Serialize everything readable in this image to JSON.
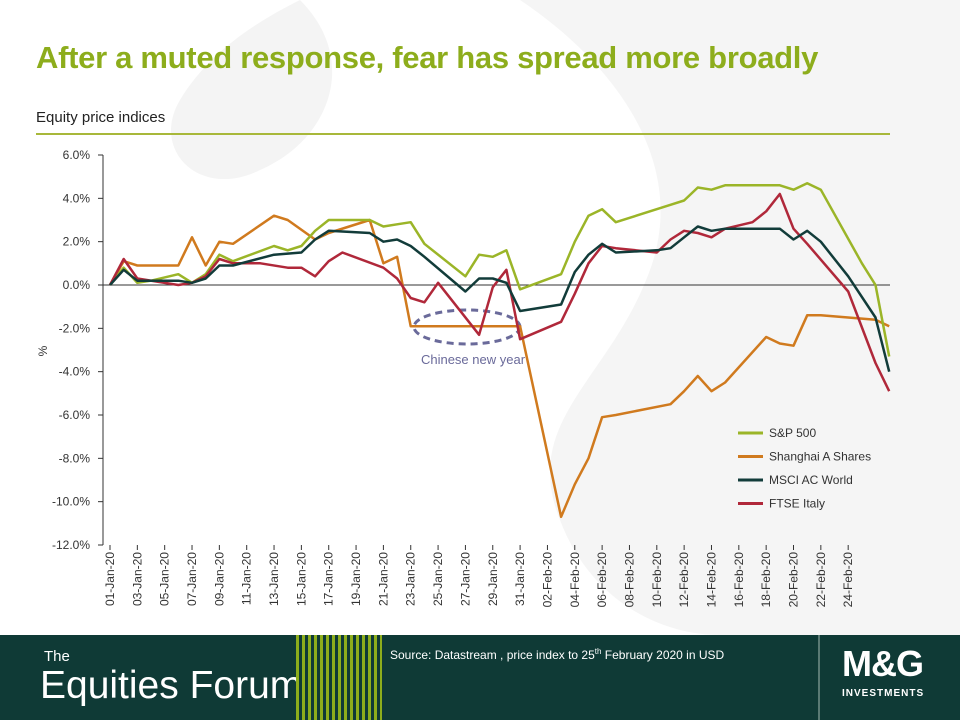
{
  "header": {
    "title": "After a muted response, fear has spread more broadly",
    "subtitle": "Equity price indices"
  },
  "footer": {
    "brand_small": "The",
    "brand_big": "Equities Forum",
    "source_prefix": "Source: Datastream , price index to 25",
    "source_sup": "th",
    "source_suffix": " February 2020 in USD",
    "logo_text": "M&G",
    "logo_sub": "INVESTMENTS"
  },
  "colors": {
    "title": "#8dad1c",
    "footer_bg": "#0f3a36",
    "sp500": "#9bb528",
    "shanghai": "#d07a1e",
    "msci": "#123c3a",
    "ftse": "#b0283a",
    "annotation": "#6a6a9a"
  },
  "chart_data": {
    "type": "line",
    "ylabel": "%",
    "ylim": [
      -12,
      6
    ],
    "yticks": [
      6,
      4,
      2,
      0,
      -2,
      -4,
      -6,
      -8,
      -10,
      -12
    ],
    "ytick_labels": [
      "6.0%",
      "4.0%",
      "2.0%",
      "0.0%",
      "-2.0%",
      "-4.0%",
      "-6.0%",
      "-8.0%",
      "-10.0%",
      "-12.0%"
    ],
    "xlabels": [
      "01-Jan-20",
      "03-Jan-20",
      "05-Jan-20",
      "07-Jan-20",
      "09-Jan-20",
      "11-Jan-20",
      "13-Jan-20",
      "15-Jan-20",
      "17-Jan-20",
      "19-Jan-20",
      "21-Jan-20",
      "23-Jan-20",
      "25-Jan-20",
      "27-Jan-20",
      "29-Jan-20",
      "31-Jan-20",
      "02-Feb-20",
      "04-Feb-20",
      "06-Feb-20",
      "08-Feb-20",
      "10-Feb-20",
      "12-Feb-20",
      "14-Feb-20",
      "16-Feb-20",
      "18-Feb-20",
      "20-Feb-20",
      "22-Feb-20",
      "24-Feb-20"
    ],
    "legend_position": "bottom-right",
    "annotation": "Chinese new year",
    "series": [
      {
        "name": "S&P 500",
        "points": [
          [
            0,
            0
          ],
          [
            1,
            0.8
          ],
          [
            2,
            0.1
          ],
          [
            3,
            0.2
          ],
          [
            5,
            0.5
          ],
          [
            6,
            0.1
          ],
          [
            7,
            0.5
          ],
          [
            8,
            1.4
          ],
          [
            9,
            1.1
          ],
          [
            12,
            1.8
          ],
          [
            13,
            1.6
          ],
          [
            14,
            1.8
          ],
          [
            15,
            2.5
          ],
          [
            16,
            3.0
          ],
          [
            19,
            3.0
          ],
          [
            20,
            2.7
          ],
          [
            21,
            2.8
          ],
          [
            22,
            2.9
          ],
          [
            23,
            1.9
          ],
          [
            26,
            0.4
          ],
          [
            27,
            1.4
          ],
          [
            28,
            1.3
          ],
          [
            29,
            1.6
          ],
          [
            30,
            -0.2
          ],
          [
            33,
            0.5
          ],
          [
            34,
            2.0
          ],
          [
            35,
            3.2
          ],
          [
            36,
            3.5
          ],
          [
            37,
            2.9
          ],
          [
            41,
            3.7
          ],
          [
            42,
            3.9
          ],
          [
            43,
            4.5
          ],
          [
            44,
            4.4
          ],
          [
            45,
            4.6
          ],
          [
            49,
            4.6
          ],
          [
            50,
            4.4
          ],
          [
            51,
            4.7
          ],
          [
            52,
            4.4
          ],
          [
            55,
            1.0
          ],
          [
            56,
            0.0
          ],
          [
            57,
            -3.3
          ]
        ]
      },
      {
        "name": "Shanghai A Shares",
        "points": [
          [
            0,
            0
          ],
          [
            1,
            1.1
          ],
          [
            2,
            0.9
          ],
          [
            5,
            0.9
          ],
          [
            6,
            2.2
          ],
          [
            7,
            0.9
          ],
          [
            8,
            2.0
          ],
          [
            9,
            1.9
          ],
          [
            12,
            3.2
          ],
          [
            13,
            3.0
          ],
          [
            15,
            2.1
          ],
          [
            16,
            2.4
          ],
          [
            19,
            3.0
          ],
          [
            20,
            1.0
          ],
          [
            21,
            1.3
          ],
          [
            22,
            -1.9
          ],
          [
            30,
            -1.9
          ],
          [
            33,
            -10.7
          ],
          [
            34,
            -9.2
          ],
          [
            35,
            -8.0
          ],
          [
            36,
            -6.1
          ],
          [
            37,
            -6.0
          ],
          [
            41,
            -5.5
          ],
          [
            42,
            -4.9
          ],
          [
            43,
            -4.2
          ],
          [
            44,
            -4.9
          ],
          [
            45,
            -4.5
          ],
          [
            48,
            -2.4
          ],
          [
            49,
            -2.7
          ],
          [
            50,
            -2.8
          ],
          [
            51,
            -1.4
          ],
          [
            52,
            -1.4
          ],
          [
            56,
            -1.6
          ],
          [
            57,
            -1.9
          ]
        ]
      },
      {
        "name": "MSCI AC World",
        "points": [
          [
            0,
            0
          ],
          [
            1,
            0.7
          ],
          [
            2,
            0.2
          ],
          [
            5,
            0.2
          ],
          [
            6,
            0.1
          ],
          [
            7,
            0.3
          ],
          [
            8,
            0.9
          ],
          [
            9,
            0.9
          ],
          [
            12,
            1.4
          ],
          [
            14,
            1.5
          ],
          [
            15,
            2.1
          ],
          [
            16,
            2.5
          ],
          [
            19,
            2.4
          ],
          [
            20,
            2.0
          ],
          [
            21,
            2.1
          ],
          [
            22,
            1.8
          ],
          [
            23,
            1.3
          ],
          [
            26,
            -0.3
          ],
          [
            27,
            0.3
          ],
          [
            28,
            0.3
          ],
          [
            29,
            0.1
          ],
          [
            30,
            -1.2
          ],
          [
            33,
            -0.9
          ],
          [
            34,
            0.6
          ],
          [
            35,
            1.4
          ],
          [
            36,
            1.9
          ],
          [
            37,
            1.5
          ],
          [
            40,
            1.6
          ],
          [
            41,
            1.7
          ],
          [
            42,
            2.2
          ],
          [
            43,
            2.7
          ],
          [
            44,
            2.5
          ],
          [
            45,
            2.6
          ],
          [
            49,
            2.6
          ],
          [
            50,
            2.1
          ],
          [
            51,
            2.5
          ],
          [
            52,
            2.0
          ],
          [
            54,
            0.4
          ],
          [
            56,
            -1.5
          ],
          [
            57,
            -4.0
          ]
        ]
      },
      {
        "name": "FTSE Italy",
        "points": [
          [
            0,
            0
          ],
          [
            1,
            1.2
          ],
          [
            2,
            0.3
          ],
          [
            5,
            0.0
          ],
          [
            6,
            0.1
          ],
          [
            7,
            0.4
          ],
          [
            8,
            1.2
          ],
          [
            9,
            1.0
          ],
          [
            11,
            1.0
          ],
          [
            13,
            0.8
          ],
          [
            14,
            0.8
          ],
          [
            15,
            0.4
          ],
          [
            16,
            1.1
          ],
          [
            17,
            1.5
          ],
          [
            20,
            0.8
          ],
          [
            21,
            0.3
          ],
          [
            22,
            -0.6
          ],
          [
            23,
            -0.8
          ],
          [
            24,
            0.1
          ],
          [
            27,
            -2.3
          ],
          [
            28,
            -0.1
          ],
          [
            29,
            0.7
          ],
          [
            30,
            -2.5
          ],
          [
            33,
            -1.7
          ],
          [
            34,
            -0.4
          ],
          [
            35,
            1.0
          ],
          [
            36,
            1.8
          ],
          [
            37,
            1.7
          ],
          [
            40,
            1.5
          ],
          [
            41,
            2.1
          ],
          [
            42,
            2.5
          ],
          [
            43,
            2.4
          ],
          [
            44,
            2.2
          ],
          [
            45,
            2.6
          ],
          [
            47,
            2.9
          ],
          [
            48,
            3.4
          ],
          [
            49,
            4.2
          ],
          [
            50,
            2.6
          ],
          [
            51,
            1.9
          ],
          [
            54,
            -0.3
          ],
          [
            56,
            -3.6
          ],
          [
            57,
            -4.9
          ]
        ]
      }
    ]
  }
}
